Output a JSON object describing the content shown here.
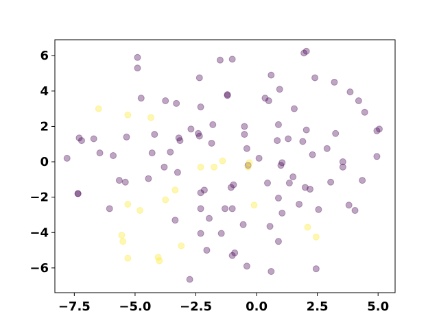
{
  "chart_data": {
    "type": "scatter",
    "title": "",
    "xlabel": "",
    "ylabel": "",
    "xlim": [
      -8.3,
      5.7
    ],
    "ylim": [
      -7.4,
      6.9
    ],
    "xticks": [
      -7.5,
      -5.0,
      -2.5,
      0.0,
      2.5,
      5.0
    ],
    "xtick_labels": [
      "−7.5",
      "−5.0",
      "−2.5",
      "0.0",
      "2.5",
      "5.0"
    ],
    "yticks": [
      -6,
      -4,
      -2,
      0,
      2,
      4,
      6
    ],
    "ytick_labels": [
      "−6",
      "−4",
      "−2",
      "0",
      "2",
      "4",
      "6"
    ],
    "grid": false,
    "legend": "none",
    "marker_opacity": 0.35,
    "colors": {
      "class_0": "#440154",
      "class_1": "#fde725"
    },
    "series": [
      {
        "class": 0,
        "points": [
          [
            -7.8,
            0.2
          ],
          [
            -7.3,
            1.35
          ],
          [
            -7.2,
            1.2
          ],
          [
            -6.7,
            1.3
          ],
          [
            -6.45,
            0.5
          ],
          [
            -7.35,
            -1.8
          ],
          [
            -7.35,
            -1.8
          ],
          [
            -5.9,
            0.35
          ],
          [
            -6.05,
            -2.65
          ],
          [
            -5.65,
            -1.05
          ],
          [
            -5.4,
            -1.15
          ],
          [
            -5.35,
            1.4
          ],
          [
            -4.9,
            5.9
          ],
          [
            -4.9,
            5.3
          ],
          [
            -4.75,
            3.6
          ],
          [
            -4.45,
            -0.95
          ],
          [
            -4.3,
            0.5
          ],
          [
            -4.2,
            1.55
          ],
          [
            -3.75,
            3.45
          ],
          [
            -3.8,
            -0.3
          ],
          [
            -3.55,
            0.55
          ],
          [
            -3.3,
            3.3
          ],
          [
            -3.25,
            -0.6
          ],
          [
            -3.2,
            1.35
          ],
          [
            -3.15,
            1.2
          ],
          [
            -3.35,
            -3.3
          ],
          [
            -2.75,
            -6.65
          ],
          [
            -2.7,
            1.85
          ],
          [
            -2.4,
            1.6
          ],
          [
            -2.35,
            1.45
          ],
          [
            -2.35,
            4.75
          ],
          [
            -2.3,
            3.1
          ],
          [
            -2.3,
            -1.75
          ],
          [
            -2.3,
            -2.65
          ],
          [
            -2.3,
            -4.05
          ],
          [
            -2.15,
            -1.6
          ],
          [
            -2.05,
            -5.0
          ],
          [
            -1.95,
            -3.2
          ],
          [
            -1.85,
            1.05
          ],
          [
            -1.8,
            2.1
          ],
          [
            -1.5,
            5.75
          ],
          [
            -1.45,
            -4.05
          ],
          [
            -1.3,
            -2.65
          ],
          [
            -1.2,
            3.8
          ],
          [
            -1.2,
            3.75
          ],
          [
            -1.05,
            -1.45
          ],
          [
            -1.0,
            5.8
          ],
          [
            -1.0,
            -2.65
          ],
          [
            -1.0,
            -5.3
          ],
          [
            -0.95,
            -1.3
          ],
          [
            -0.9,
            -5.15
          ],
          [
            -0.55,
            -3.55
          ],
          [
            -0.5,
            2.0
          ],
          [
            -0.5,
            1.55
          ],
          [
            -0.4,
            0.75
          ],
          [
            -0.4,
            -5.9
          ],
          [
            -0.35,
            -0.2
          ],
          [
            0.1,
            0.2
          ],
          [
            0.35,
            3.6
          ],
          [
            0.45,
            -1.2
          ],
          [
            0.5,
            3.45
          ],
          [
            0.55,
            -3.65
          ],
          [
            0.6,
            4.9
          ],
          [
            0.6,
            -6.2
          ],
          [
            0.85,
            1.2
          ],
          [
            0.9,
            -2.05
          ],
          [
            0.9,
            2.1
          ],
          [
            0.9,
            -4.5
          ],
          [
            0.95,
            4.1
          ],
          [
            1.0,
            -0.2
          ],
          [
            1.05,
            -2.9
          ],
          [
            1.05,
            -0.05
          ],
          [
            1.3,
            1.3
          ],
          [
            1.35,
            -1.2
          ],
          [
            1.5,
            -0.85
          ],
          [
            1.55,
            3.0
          ],
          [
            1.75,
            -2.4
          ],
          [
            1.9,
            1.15
          ],
          [
            1.95,
            6.15
          ],
          [
            2.05,
            6.25
          ],
          [
            2.05,
            1.8
          ],
          [
            2.0,
            -1.45
          ],
          [
            2.2,
            -1.55
          ],
          [
            2.3,
            0.4
          ],
          [
            2.4,
            4.75
          ],
          [
            2.45,
            -6.05
          ],
          [
            2.55,
            -2.7
          ],
          [
            2.9,
            0.75
          ],
          [
            3.05,
            -1.15
          ],
          [
            3.2,
            4.5
          ],
          [
            3.25,
            1.6
          ],
          [
            3.55,
            0.0
          ],
          [
            3.55,
            -0.3
          ],
          [
            3.8,
            -2.45
          ],
          [
            3.85,
            3.95
          ],
          [
            4.05,
            -2.75
          ],
          [
            4.2,
            3.45
          ],
          [
            4.35,
            -1.05
          ],
          [
            4.45,
            2.8
          ],
          [
            4.95,
            1.75
          ],
          [
            4.95,
            0.3
          ],
          [
            5.05,
            1.85
          ]
        ]
      },
      {
        "class": 1,
        "points": [
          [
            -6.5,
            3.0
          ],
          [
            -5.3,
            2.65
          ],
          [
            -5.3,
            -2.4
          ],
          [
            -5.55,
            -4.15
          ],
          [
            -5.5,
            -4.5
          ],
          [
            -5.3,
            -5.45
          ],
          [
            -4.8,
            -2.75
          ],
          [
            -4.35,
            2.5
          ],
          [
            -4.05,
            -5.4
          ],
          [
            -4.0,
            -5.6
          ],
          [
            -3.75,
            -2.15
          ],
          [
            -3.35,
            -1.6
          ],
          [
            -3.1,
            -4.75
          ],
          [
            -2.3,
            -0.3
          ],
          [
            -1.75,
            -0.3
          ],
          [
            -1.4,
            0.05
          ],
          [
            -0.35,
            -0.3
          ],
          [
            -0.3,
            -0.05
          ],
          [
            -0.1,
            -2.45
          ],
          [
            2.1,
            -3.7
          ],
          [
            2.45,
            -4.25
          ]
        ]
      }
    ]
  }
}
